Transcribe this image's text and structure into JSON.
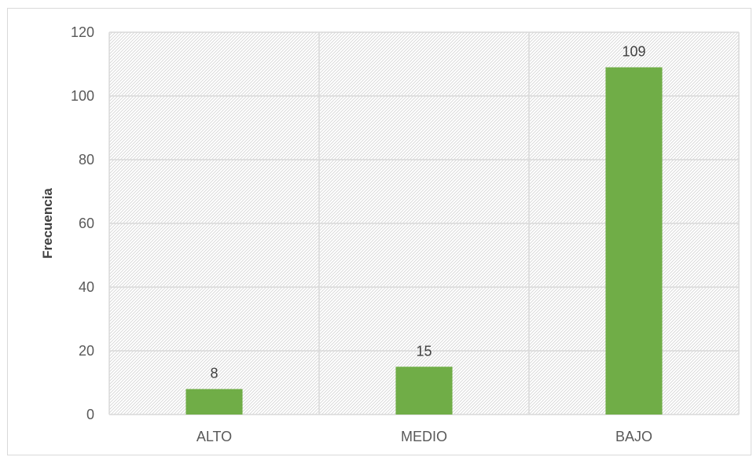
{
  "chart_data": {
    "type": "bar",
    "title": "",
    "xlabel": "",
    "ylabel": "Frecuencia",
    "categories": [
      "ALTO",
      "MEDIO",
      "BAJO"
    ],
    "values": [
      8,
      15,
      109
    ],
    "ylim": [
      0,
      120
    ],
    "yticks": [
      0,
      20,
      40,
      60,
      80,
      100,
      120
    ],
    "grid": true,
    "legend": "none",
    "bar_color": "#70ad47",
    "data_labels": [
      "8",
      "15",
      "109"
    ]
  }
}
